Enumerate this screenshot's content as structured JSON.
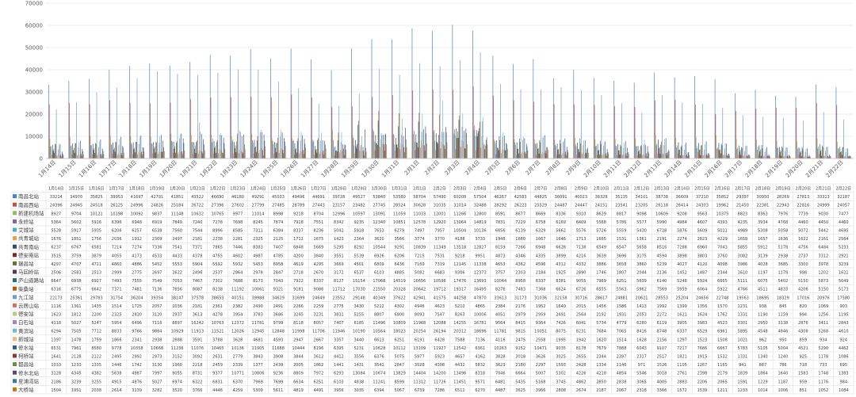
{
  "chart_data": {
    "type": "bar",
    "title": "",
    "xlabel": "",
    "ylabel": "",
    "ylim": [
      0,
      70000
    ],
    "yticks": [
      0,
      10000,
      20000,
      30000,
      40000,
      50000,
      60000,
      70000
    ],
    "grid": true,
    "legend": "data-table",
    "categories": [
      "1月14日",
      "1月15日",
      "1月16日",
      "1月17日",
      "1月18日",
      "1月19日",
      "1月20日",
      "1月21日",
      "1月22日",
      "1月23日",
      "1月24日",
      "1月25日",
      "1月26日",
      "1月27日",
      "1月28日",
      "1月29日",
      "1月30日",
      "1月31日",
      "2月1日",
      "2月2日",
      "2月3日",
      "2月4日",
      "2月5日",
      "2月6日",
      "2月7日",
      "2月8日",
      "2月9日",
      "2月10日",
      "2月11日",
      "2月12日",
      "2月13日",
      "2月14日",
      "2月15日",
      "2月16日",
      "2月17日",
      "2月18日",
      "2月19日",
      "2月20日",
      "2月21日",
      "2月22日"
    ],
    "series": [
      {
        "name": "南昌北站",
        "color": "#4e81bd",
        "values": [
          33214,
          34970,
          35825,
          39953,
          41697,
          42791,
          41851,
          43522,
          46690,
          46180,
          49291,
          45033,
          49496,
          44691,
          39728,
          49527,
          53840,
          53580,
          58704,
          57490,
          60208,
          57504,
          46267,
          42583,
          44825,
          36091,
          40023,
          36328,
          35135,
          34101,
          38738,
          36609,
          37210,
          35852,
          29397,
          30950,
          28269,
          27813,
          33313,
          32187
        ]
      },
      {
        "name": "南昌西站",
        "color": "#c0504e",
        "values": [
          24396,
          24945,
          24518,
          26125,
          24996,
          24826,
          25184,
          26722,
          27396,
          27602,
          27799,
          27485,
          28789,
          27443,
          23157,
          23482,
          27745,
          28524,
          30628,
          31035,
          31014,
          32488,
          28292,
          26223,
          25529,
          24487,
          24447,
          24151,
          23541,
          23205,
          26118,
          26414,
          24303,
          19962,
          21450,
          22381,
          22943,
          22816,
          24999,
          24057
        ]
      },
      {
        "name": "新建机场站",
        "color": "#9bbb59",
        "values": [
          8927,
          9704,
          10121,
          10198,
          10092,
          9837,
          11148,
          10632,
          10765,
          9977,
          11014,
          8998,
          9218,
          8704,
          12996,
          10597,
          13091,
          11059,
          11033,
          12001,
          11266,
          12800,
          8591,
          8677,
          8669,
          8336,
          9310,
          8629,
          8817,
          9098,
          10609,
          9208,
          9563,
          10375,
          8823,
          8363,
          7976,
          7739,
          9030,
          7477
        ]
      },
      {
        "name": "永修站",
        "color": "#8063a2",
        "values": [
          5364,
          5602,
          5916,
          6396,
          6948,
          6919,
          7849,
          7240,
          7278,
          7698,
          8245,
          7874,
          7918,
          7551,
          8342,
          9235,
          12340,
          10851,
          12578,
          12920,
          13064,
          14819,
          7831,
          7229,
          6758,
          6169,
          6409,
          5568,
          5786,
          5577,
          5990,
          4984,
          4607,
          4393,
          4235,
          3934,
          4768,
          4460,
          4450,
          4460
        ]
      },
      {
        "name": "艾城站",
        "color": "#4bacc6",
        "values": [
          5528,
          5917,
          5935,
          6206,
          6257,
          6538,
          7560,
          7544,
          8996,
          8585,
          7311,
          6384,
          8337,
          8236,
          5042,
          5918,
          7653,
          6279,
          7497,
          7957,
          10504,
          10136,
          6856,
          6139,
          6329,
          5662,
          5576,
          5726,
          5559,
          5430,
          6728,
          5876,
          5609,
          5021,
          4989,
          5308,
          5058,
          5072,
          5442,
          4695
        ]
      },
      {
        "name": "共青城站",
        "color": "#f79646",
        "values": [
          1676,
          1851,
          1756,
          2036,
          1912,
          2309,
          2497,
          2181,
          2238,
          2281,
          2325,
          2125,
          1712,
          1675,
          1423,
          2364,
          3620,
          3566,
          3774,
          3770,
          4188,
          3733,
          1948,
          1680,
          1667,
          1646,
          1713,
          1665,
          1531,
          1361,
          2191,
          2274,
          2823,
          4229,
          1658,
          1657,
          1636,
          1622,
          2161,
          2564
        ]
      },
      {
        "name": "共青南站",
        "color": "#2c4d75",
        "values": [
          6237,
          6767,
          6581,
          7214,
          7274,
          7336,
          7541,
          7371,
          7865,
          7446,
          8383,
          7407,
          6848,
          5669,
          5295,
          8292,
          10544,
          9291,
          10839,
          11349,
          13518,
          12827,
          8159,
          7266,
          6948,
          6628,
          7138,
          6549,
          6547,
          5658,
          8516,
          7288,
          6960,
          7043,
          5855,
          5912,
          5178,
          4756,
          6484,
          5233
        ]
      },
      {
        "name": "德安南站",
        "color": "#772c2a",
        "values": [
          3515,
          3759,
          3879,
          4055,
          4173,
          4533,
          4433,
          4378,
          4755,
          4602,
          4987,
          4785,
          4200,
          3840,
          3551,
          5539,
          6926,
          6206,
          7215,
          7531,
          9218,
          9951,
          4873,
          4346,
          4335,
          3899,
          4216,
          3639,
          3696,
          3175,
          4594,
          3898,
          3803,
          3760,
          3082,
          3139,
          2938,
          2737,
          3312,
          2921
        ]
      },
      {
        "name": "瑞昌站",
        "color": "#5f7530",
        "values": [
          4297,
          4707,
          4711,
          4860,
          4886,
          5452,
          5553,
          5904,
          5592,
          5932,
          5453,
          6958,
          4619,
          4295,
          3669,
          4501,
          6809,
          6436,
          7169,
          7319,
          12145,
          11338,
          4653,
          4362,
          4596,
          4312,
          4332,
          3886,
          3658,
          3860,
          5239,
          4027,
          4120,
          4098,
          3986,
          4028,
          3685,
          3300,
          3978,
          3239
        ]
      },
      {
        "name": "马回岭站",
        "color": "#4d3b62",
        "values": [
          2506,
          2583,
          2513,
          2999,
          2775,
          2697,
          2622,
          2496,
          2537,
          2864,
          2978,
          2847,
          2718,
          2670,
          3172,
          6537,
          6103,
          4885,
          5082,
          6683,
          9306,
          12373,
          3757,
          2303,
          2184,
          1925,
          2890,
          1746,
          1807,
          2044,
          2136,
          1452,
          1487,
          2344,
          1610,
          1197,
          1178,
          998,
          1202,
          1621
        ]
      },
      {
        "name": "庐山道路站",
        "color": "#276a7c",
        "values": [
          6647,
          6938,
          6927,
          7493,
          7555,
          7549,
          7053,
          7467,
          7302,
          7688,
          8173,
          7043,
          7922,
          8337,
          8127,
          15154,
          17068,
          14519,
          16656,
          10596,
          17476,
          13693,
          10044,
          8958,
          8337,
          8381,
          9055,
          7969,
          6251,
          5639,
          6140,
          5248,
          5924,
          6665,
          5111,
          6075,
          5402,
          5150,
          5873,
          5049
        ]
      },
      {
        "name": "柴桑站",
        "color": "#b65708",
        "values": [
          6316,
          6775,
          6642,
          7371,
          7481,
          7136,
          7856,
          8087,
          8238,
          11192,
          10061,
          9321,
          9181,
          9086,
          11712,
          17030,
          21550,
          20328,
          20642,
          19712,
          19317,
          16495,
          8276,
          7483,
          7368,
          6624,
          6726,
          6555,
          5563,
          5962,
          7569,
          5959,
          6064,
          5922,
          4766,
          4511,
          4833,
          4206,
          5150,
          5173
        ]
      },
      {
        "name": "九江站",
        "color": "#729aca",
        "values": [
          22173,
          25361,
          29783,
          31754,
          36204,
          39354,
          38147,
          37578,
          38653,
          40151,
          39988,
          34629,
          31699,
          24649,
          23552,
          29148,
          40349,
          37622,
          42941,
          41575,
          44258,
          47870,
          33613,
          31173,
          31036,
          32158,
          30716,
          28617,
          24881,
          20621,
          28553,
          25204,
          24656,
          22748,
          19563,
          18695,
          18329,
          17016,
          20976,
          17580
        ]
      },
      {
        "name": "云居山站",
        "color": "#d1716f",
        "values": [
          1116,
          1361,
          1435,
          1514,
          1725,
          2057,
          2036,
          2181,
          2361,
          2382,
          2490,
          2491,
          2266,
          2259,
          2775,
          3430,
          5212,
          4302,
          4946,
          4623,
          5210,
          4865,
          2384,
          2176,
          1952,
          1640,
          2015,
          1456,
          1586,
          1413,
          1992,
          1399,
          1356,
          1570,
          1231,
          938,
          845,
          820,
          1069,
          903
        ]
      },
      {
        "name": "德安站",
        "color": "#b3cd7f",
        "values": [
          1623,
          1812,
          2200,
          2325,
          2830,
          3120,
          2937,
          3613,
          4278,
          3954,
          3783,
          3686,
          3245,
          3231,
          3831,
          5255,
          8807,
          6900,
          8093,
          7547,
          8263,
          10006,
          4051,
          2979,
          2959,
          2491,
          2564,
          2192,
          1931,
          2053,
          2272,
          1621,
          1624,
          1762,
          1331,
          1190,
          1159,
          994,
          1256,
          1195
        ]
      },
      {
        "name": "白石站",
        "color": "#9d88b9",
        "values": [
          4118,
          5027,
          5247,
          5954,
          6496,
          7116,
          8897,
          16242,
          10763,
          12372,
          11781,
          9799,
          8118,
          8057,
          7407,
          6185,
          11496,
          10809,
          11968,
          12088,
          14255,
          16781,
          9564,
          8415,
          9364,
          7426,
          6041,
          5734,
          4779,
          6280,
          6119,
          3905,
          3983,
          4523,
          3301,
          2950,
          3138,
          2876,
          3411,
          2843
        ]
      },
      {
        "name": "黄滨站",
        "color": "#6fbdd2",
        "values": [
          6294,
          7505,
          7712,
          8833,
          9766,
          9864,
          10929,
          11913,
          11521,
          12026,
          12945,
          12848,
          11998,
          11706,
          11946,
          10190,
          10564,
          18023,
          20254,
          26194,
          20312,
          18696,
          11781,
          9815,
          10051,
          8075,
          8231,
          7684,
          7065,
          8416,
          8748,
          6337,
          6529,
          6961,
          5895,
          4548,
          4846,
          4308,
          5268,
          4610
        ]
      },
      {
        "name": "新城站",
        "color": "#f9b073",
        "values": [
          1397,
          1478,
          1759,
          1866,
          2341,
          2938,
          2888,
          3591,
          3788,
          3628,
          4681,
          4593,
          2947,
          2667,
          3357,
          3440,
          6613,
          6251,
          6191,
          6428,
          7588,
          7136,
          4116,
          2475,
          2558,
          1995,
          1942,
          1620,
          1514,
          1628,
          2156,
          1297,
          1523,
          1508,
          1021,
          962,
          950,
          859,
          934,
          924
        ]
      },
      {
        "name": "修水站",
        "color": "#395c89",
        "values": [
          6531,
          7961,
          8580,
          9778,
          10358,
          10668,
          11236,
          11076,
          10465,
          10136,
          11905,
          11688,
          10444,
          8196,
          6395,
          5231,
          10628,
          10112,
          13109,
          11927,
          12542,
          6361,
          10263,
          9152,
          10471,
          9035,
          8178,
          7679,
          7888,
          6043,
          9107,
          7217,
          7686,
          6667,
          5783,
          5105,
          5004,
          4521,
          5290,
          4462
        ]
      },
      {
        "name": "柯桥站",
        "color": "#8d3838",
        "values": [
          1641,
          2128,
          2122,
          2495,
          2992,
          2973,
          3152,
          3092,
          2631,
          2779,
          3843,
          3908,
          3844,
          3612,
          4412,
          3556,
          6376,
          5075,
          5977,
          5923,
          4657,
          4162,
          3828,
          3018,
          3626,
          3025,
          2655,
          2344,
          2397,
          2317,
          2517,
          1821,
          1915,
          1532,
          1331,
          1340,
          1240,
          925,
          1178,
          1086
        ]
      },
      {
        "name": "都昌站",
        "color": "#728b3e",
        "values": [
          1033,
          1233,
          1335,
          1446,
          1742,
          3130,
          1960,
          2218,
          2459,
          2339,
          1377,
          2439,
          2005,
          1862,
          1441,
          1431,
          3541,
          2847,
          3528,
          4308,
          4432,
          5832,
          3623,
          2180,
          2297,
          1593,
          2428,
          1334,
          1146,
          971,
          1526,
          1105,
          1267,
          1165,
          941,
          887,
          786,
          718,
          733,
          695
        ]
      },
      {
        "name": "修水北站",
        "color": "#5a4873",
        "values": [
          3128,
          4345,
          4382,
          5638,
          4987,
          7997,
          9055,
          8731,
          9377,
          10771,
          10806,
          9236,
          8809,
          7972,
          6293,
          13084,
          10674,
          13829,
          14404,
          14200,
          13496,
          8318,
          7046,
          6664,
          5007,
          5302,
          4226,
          4218,
          4854,
          5546,
          3018,
          2761,
          2398,
          2179,
          1839,
          1864,
          1640,
          1583,
          1748,
          1383
        ]
      },
      {
        "name": "星浦湾站",
        "color": "#2e7e94",
        "values": [
          2186,
          3239,
          3255,
          4915,
          4876,
          5027,
          6974,
          6322,
          6831,
          6370,
          7969,
          7699,
          6634,
          6251,
          6103,
          4838,
          11241,
          8599,
          11312,
          11726,
          11451,
          9571,
          6481,
          5435,
          5168,
          3745,
          4862,
          2850,
          2838,
          3065,
          4005,
          2883,
          2206,
          2065,
          1591,
          1229,
          1187,
          959,
          1176,
          984
        ]
      },
      {
        "name": "大桥站",
        "color": "#d17213",
        "values": [
          1504,
          1951,
          2038,
          2614,
          3139,
          3282,
          3520,
          3766,
          4446,
          4259,
          5309,
          5611,
          4819,
          4491,
          3956,
          3035,
          6394,
          5067,
          6739,
          7286,
          6511,
          6270,
          4487,
          3625,
          3966,
          2808,
          2674,
          2187,
          2067,
          2318,
          3366,
          1572,
          1539,
          1211,
          1233,
          1014,
          1006,
          851,
          1052,
          1084
        ]
      }
    ]
  }
}
